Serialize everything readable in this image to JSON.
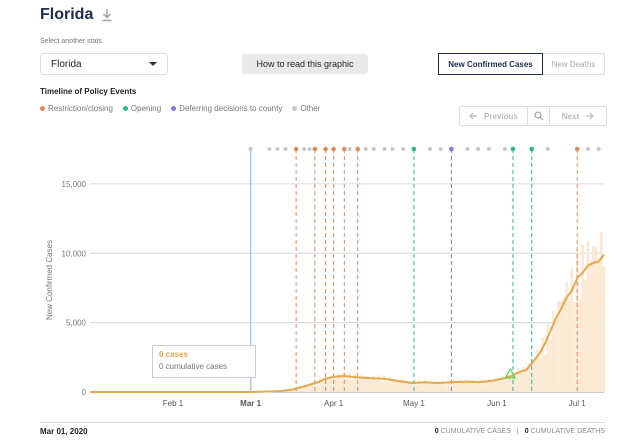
{
  "header": {
    "title": "Florida",
    "download_icon": "download-icon"
  },
  "stats_select": {
    "label": "Select another stats",
    "value": "Florida"
  },
  "how_to_read_label": "How to read this graphic",
  "metric_toggle": {
    "active": "New Confirmed Cases",
    "inactive": "New Deaths"
  },
  "timeline": {
    "title": "Timeline of Policy Events",
    "legend": [
      {
        "label": "Restriction/closing",
        "color": "#e08a5e"
      },
      {
        "label": "Opening",
        "color": "#2bb58f"
      },
      {
        "label": "Deferring decisions to county",
        "color": "#7b7bd8"
      },
      {
        "label": "Other",
        "color": "#c8c8c8"
      }
    ]
  },
  "event_nav": {
    "previous_label": "Previous",
    "next_label": "Next"
  },
  "tooltip": {
    "cases": "0 cases",
    "cumulative": "0 cumulative cases"
  },
  "footer": {
    "date": "Mar 01, 2020",
    "cumulative_cases_value": "0",
    "cumulative_cases_label": "CUMULATIVE CASES",
    "cumulative_deaths_value": "0",
    "cumulative_deaths_label": "CUMULATIVE DEATHS",
    "separator": "|"
  },
  "chart_data": {
    "type": "line",
    "ylabel": "New Confirmed Cases",
    "ylim": [
      0,
      16000
    ],
    "yticks": [
      "0",
      "5,000",
      "10,000",
      "15,000"
    ],
    "ytick_values": [
      0,
      5000,
      10000,
      15000
    ],
    "xlim_days": [
      0,
      180
    ],
    "xticks": [
      {
        "label": "Feb 1",
        "day": 31
      },
      {
        "label": "Mar 1",
        "day": 60
      },
      {
        "label": "Apr 1",
        "day": 91
      },
      {
        "label": "May 1",
        "day": 121
      },
      {
        "label": "Jun 1",
        "day": 152
      },
      {
        "label": "Jul 1",
        "day": 182
      }
    ],
    "selected_day": 60,
    "line_color": "#e4a84f",
    "series": [
      {
        "days": [
          0,
          60,
          70,
          75,
          80,
          85,
          88,
          91,
          95,
          100,
          105,
          110,
          115,
          120,
          125,
          130,
          135,
          140,
          145,
          150,
          155,
          158,
          160,
          163,
          166,
          168,
          170,
          172,
          174,
          176,
          178,
          180,
          182,
          184,
          186,
          188,
          190,
          192
        ],
        "values": [
          0,
          0,
          50,
          150,
          400,
          700,
          950,
          1100,
          1150,
          1050,
          1000,
          950,
          800,
          650,
          700,
          650,
          700,
          750,
          700,
          800,
          1000,
          1200,
          1400,
          1600,
          2300,
          2800,
          3500,
          4400,
          5300,
          6000,
          6800,
          7300,
          8200,
          8600,
          9100,
          9300,
          9400,
          9900
        ]
      }
    ],
    "events": [
      {
        "day": 60,
        "type": "selected"
      },
      {
        "day": 77,
        "type": "restriction"
      },
      {
        "day": 84,
        "type": "restriction"
      },
      {
        "day": 88,
        "type": "restriction"
      },
      {
        "day": 91,
        "type": "restriction"
      },
      {
        "day": 95,
        "type": "restriction"
      },
      {
        "day": 100,
        "type": "restriction"
      },
      {
        "day": 121,
        "type": "opening"
      },
      {
        "day": 135,
        "type": "deferring"
      },
      {
        "day": 158,
        "type": "opening"
      },
      {
        "day": 165,
        "type": "opening"
      },
      {
        "day": 182,
        "type": "restriction"
      }
    ],
    "other_event_days": [
      67,
      70,
      73,
      80,
      82,
      97,
      103,
      106,
      110,
      113,
      117,
      127,
      131,
      141,
      145,
      149,
      155,
      171,
      186,
      190
    ]
  }
}
